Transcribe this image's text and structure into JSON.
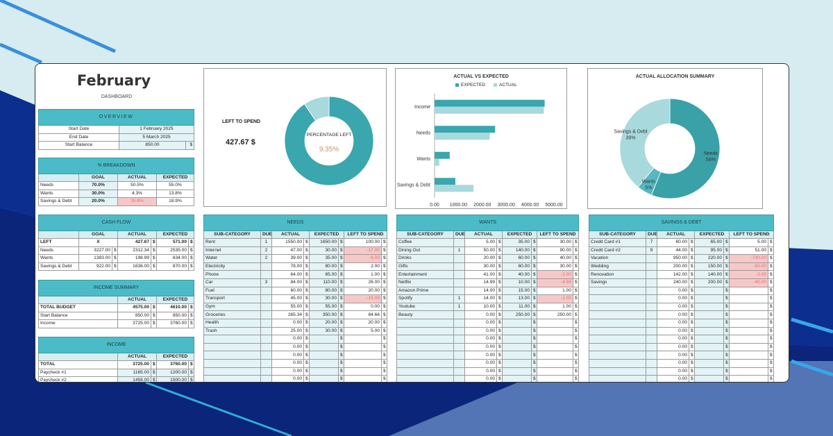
{
  "dashboard": {
    "month": "February",
    "subtitle": "DASHBOARD"
  },
  "overview": {
    "title": "OVERVIEW",
    "rows": [
      {
        "label": "Start Date",
        "value": "1 February 2025",
        "unit": ""
      },
      {
        "label": "End Date",
        "value": "5 March 2025",
        "unit": ""
      },
      {
        "label": "Start Balance",
        "value": "850.00",
        "unit": "$"
      }
    ]
  },
  "breakdown": {
    "title": "% BREAKDOWN",
    "headers": [
      "",
      "GOAL",
      "ACTUAL",
      "EXPECTED"
    ],
    "rows": [
      {
        "label": "Needs",
        "goal": "70.0%",
        "actual": "50.5%",
        "expected": "55.0%"
      },
      {
        "label": "Wants",
        "goal": "30.0%",
        "actual": "4.3%",
        "expected": "13.8%"
      },
      {
        "label": "Savings & Debt",
        "goal": "20.0%",
        "actual": "35.8%",
        "expected": "18.9%"
      }
    ]
  },
  "cashflow": {
    "title": "CASH FLOW",
    "headers": [
      "",
      "GOAL",
      "ACTUAL",
      "EXPECTED"
    ],
    "rows": [
      {
        "label": "LEFT",
        "goal": "X",
        "actual": "427.67",
        "expected": "571.00"
      },
      {
        "label": "Needs",
        "goal": "3227.00",
        "actual": "2312.34",
        "expected": "2535.00"
      },
      {
        "label": "Wants",
        "goal": "1383.00",
        "actual": "198.99",
        "expected": "634.00"
      },
      {
        "label": "Savings & Debt",
        "goal": "922.00",
        "actual": "1636.00",
        "expected": "870.00"
      }
    ]
  },
  "income_summary": {
    "title": "INCOME SUMMARY",
    "headers": [
      "",
      "ACTUAL",
      "EXPECTED"
    ],
    "rows": [
      {
        "label": "TOTAL BUDGET",
        "actual": "4575.00",
        "expected": "4610.00"
      },
      {
        "label": "Start Balance",
        "actual": "850.00",
        "expected": "850.00"
      },
      {
        "label": "Income",
        "actual": "3725.00",
        "expected": "3760.00"
      }
    ]
  },
  "income": {
    "title": "INCOME",
    "headers": [
      "",
      "ACTUAL",
      "EXPECTED"
    ],
    "rows": [
      {
        "label": "TOTAL",
        "actual": "3725.00",
        "expected": "3760.00"
      },
      {
        "label": "Paycheck #1",
        "actual": "1165.00",
        "expected": "1200.00"
      },
      {
        "label": "Paycheck #2",
        "actual": "1458.00",
        "expected": "1500.00"
      }
    ]
  },
  "left_to_spend": {
    "label": "LEFT TO SPEND",
    "amount": "427.67 $",
    "center_label": "PERCENTAGE LEFT",
    "percent": "9.35%"
  },
  "currency": "$",
  "colors": {
    "accent": "#4bbcc7",
    "primary": "#3aa3ab",
    "light": "#a8d9dc",
    "alert": "#f7c8c8"
  },
  "chart_data": [
    {
      "type": "pie",
      "variant": "donut",
      "title": "",
      "labels": [
        "",
        ""
      ],
      "values": [
        90.65,
        9.35
      ],
      "colors": [
        "#3aa6ae",
        "#a8d9dc"
      ]
    },
    {
      "type": "bar",
      "orientation": "horizontal",
      "title": "ACTUAL VS EXPECTED",
      "categories": [
        "Income",
        "Needs",
        "Wants",
        "Savings & Debt"
      ],
      "series": [
        {
          "name": "EXPECTED",
          "values": [
            4610,
            2535,
            634,
            870
          ],
          "color": "#3aa6ae"
        },
        {
          "name": "ACTUAL",
          "values": [
            4575,
            2312.34,
            198.99,
            1636
          ],
          "color": "#a8d9dc"
        }
      ],
      "xticks": [
        "0.00",
        "1000.00",
        "2000.00",
        "3000.00",
        "4000.00",
        "5000.00"
      ],
      "xlim": [
        0,
        5000
      ],
      "legend": "top"
    },
    {
      "type": "pie",
      "variant": "donut",
      "title": "ACTUAL ALLOCATION SUMMARY",
      "labels": [
        "Needs",
        "Wants",
        "Savings & Debt"
      ],
      "values": [
        56,
        5,
        39
      ],
      "value_labels": [
        "56%",
        "5%",
        "39%"
      ],
      "colors": [
        "#3aa1a9",
        "#56b8c0",
        "#a8d9dc"
      ]
    }
  ],
  "needs": {
    "title": "NEEDS",
    "headers": [
      "SUB-CATEGORY",
      "DUE",
      "ACTUAL",
      "EXPECTED",
      "LEFT TO SPEND"
    ],
    "rows": [
      {
        "name": "Rent",
        "due": "1",
        "actual": "1550.00",
        "expected": "1650.00",
        "left": "100.00",
        "neg": false
      },
      {
        "name": "Internet",
        "due": "2",
        "actual": "47.00",
        "expected": "30.00",
        "left": "-17.00",
        "neg": true
      },
      {
        "name": "Water",
        "due": "2",
        "actual": "39.00",
        "expected": "35.00",
        "left": "-4.00",
        "neg": true
      },
      {
        "name": "Electricity",
        "due": "",
        "actual": "78.00",
        "expected": "80.00",
        "left": "2.00",
        "neg": false
      },
      {
        "name": "Phone",
        "due": "",
        "actual": "64.00",
        "expected": "65.00",
        "left": "1.00",
        "neg": false
      },
      {
        "name": "Car",
        "due": "3",
        "actual": "84.00",
        "expected": "110.00",
        "left": "26.00",
        "neg": false
      },
      {
        "name": "Fuel",
        "due": "",
        "actual": "60.00",
        "expected": "80.00",
        "left": "20.00",
        "neg": false
      },
      {
        "name": "Transport",
        "due": "",
        "actual": "45.00",
        "expected": "30.00",
        "left": "-15.00",
        "neg": true
      },
      {
        "name": "Gym",
        "due": "",
        "actual": "55.00",
        "expected": "55.00",
        "left": "0.00",
        "neg": false
      },
      {
        "name": "Groceries",
        "due": "",
        "actual": "265.34",
        "expected": "350.00",
        "left": "84.66",
        "neg": false
      },
      {
        "name": "Health",
        "due": "",
        "actual": "0.00",
        "expected": "20.00",
        "left": "20.00",
        "neg": false
      },
      {
        "name": "Trash",
        "due": "",
        "actual": "25.00",
        "expected": "30.00",
        "left": "5.00",
        "neg": false
      },
      {
        "name": "",
        "due": "",
        "actual": "0.00",
        "expected": "",
        "left": "",
        "neg": false
      },
      {
        "name": "",
        "due": "",
        "actual": "0.00",
        "expected": "",
        "left": "",
        "neg": false
      },
      {
        "name": "",
        "due": "",
        "actual": "0.00",
        "expected": "",
        "left": "",
        "neg": false
      },
      {
        "name": "",
        "due": "",
        "actual": "0.00",
        "expected": "",
        "left": "",
        "neg": false
      },
      {
        "name": "",
        "due": "",
        "actual": "0.00",
        "expected": "",
        "left": "",
        "neg": false
      },
      {
        "name": "",
        "due": "",
        "actual": "0.00",
        "expected": "",
        "left": "",
        "neg": false
      }
    ]
  },
  "wants": {
    "title": "WANTS",
    "headers": [
      "SUB-CATEGORY",
      "DUE",
      "ACTUAL",
      "EXPECTED",
      "LEFT TO SPEND"
    ],
    "rows": [
      {
        "name": "Coffee",
        "due": "",
        "actual": "5.00",
        "expected": "35.00",
        "left": "30.00",
        "neg": false
      },
      {
        "name": "Dining Out",
        "due": "1",
        "actual": "50.00",
        "expected": "140.00",
        "left": "90.00",
        "neg": false
      },
      {
        "name": "Drinks",
        "due": "",
        "actual": "20.00",
        "expected": "60.00",
        "left": "40.00",
        "neg": false
      },
      {
        "name": "Gifts",
        "due": "",
        "actual": "30.00",
        "expected": "60.00",
        "left": "30.00",
        "neg": false
      },
      {
        "name": "Entertainment",
        "due": "",
        "actual": "41.00",
        "expected": "40.00",
        "left": "-1.00",
        "neg": true
      },
      {
        "name": "Netflix",
        "due": "",
        "actual": "14.99",
        "expected": "10.00",
        "left": "-4.99",
        "neg": true
      },
      {
        "name": "Amazon Prime",
        "due": "",
        "actual": "14.00",
        "expected": "15.00",
        "left": "1.00",
        "neg": false
      },
      {
        "name": "Spotify",
        "due": "1",
        "actual": "14.00",
        "expected": "13.00",
        "left": "-1.00",
        "neg": true
      },
      {
        "name": "Youtube",
        "due": "1",
        "actual": "10.00",
        "expected": "11.00",
        "left": "1.00",
        "neg": false
      },
      {
        "name": "Beauty",
        "due": "",
        "actual": "0.00",
        "expected": "250.00",
        "left": "250.00",
        "neg": false
      },
      {
        "name": "",
        "due": "",
        "actual": "0.00",
        "expected": "",
        "left": "",
        "neg": false
      },
      {
        "name": "",
        "due": "",
        "actual": "0.00",
        "expected": "",
        "left": "",
        "neg": false
      },
      {
        "name": "",
        "due": "",
        "actual": "0.00",
        "expected": "",
        "left": "",
        "neg": false
      },
      {
        "name": "",
        "due": "",
        "actual": "0.00",
        "expected": "",
        "left": "",
        "neg": false
      },
      {
        "name": "",
        "due": "",
        "actual": "0.00",
        "expected": "",
        "left": "",
        "neg": false
      },
      {
        "name": "",
        "due": "",
        "actual": "0.00",
        "expected": "",
        "left": "",
        "neg": false
      },
      {
        "name": "",
        "due": "",
        "actual": "0.00",
        "expected": "",
        "left": "",
        "neg": false
      },
      {
        "name": "",
        "due": "",
        "actual": "0.00",
        "expected": "",
        "left": "",
        "neg": false
      }
    ]
  },
  "savings": {
    "title": "SAVINGS & DEBT",
    "headers": [
      "SUB-CATEGORY",
      "DUE",
      "ACTUAL",
      "EXPECTED",
      "LEFT TO SPEND"
    ],
    "rows": [
      {
        "name": "Credit Card #1",
        "due": "7",
        "actual": "60.00",
        "expected": "65.00",
        "left": "5.00",
        "neg": false
      },
      {
        "name": "Credit Card #2",
        "due": "9",
        "actual": "44.00",
        "expected": "95.00",
        "left": "51.00",
        "neg": false
      },
      {
        "name": "Vacation",
        "due": "",
        "actual": "950.00",
        "expected": "220.00",
        "left": "-730.00",
        "neg": true
      },
      {
        "name": "Wedding",
        "due": "",
        "actual": "200.00",
        "expected": "150.00",
        "left": "-50.00",
        "neg": true
      },
      {
        "name": "Renovation",
        "due": "",
        "actual": "142.00",
        "expected": "140.00",
        "left": "-2.00",
        "neg": true
      },
      {
        "name": "Savings",
        "due": "",
        "actual": "240.00",
        "expected": "200.00",
        "left": "-40.00",
        "neg": true
      },
      {
        "name": "",
        "due": "",
        "actual": "0.00",
        "expected": "",
        "left": "",
        "neg": false
      },
      {
        "name": "",
        "due": "",
        "actual": "0.00",
        "expected": "",
        "left": "",
        "neg": false
      },
      {
        "name": "",
        "due": "",
        "actual": "0.00",
        "expected": "",
        "left": "",
        "neg": false
      },
      {
        "name": "",
        "due": "",
        "actual": "0.00",
        "expected": "",
        "left": "",
        "neg": false
      },
      {
        "name": "",
        "due": "",
        "actual": "0.00",
        "expected": "",
        "left": "",
        "neg": false
      },
      {
        "name": "",
        "due": "",
        "actual": "0.00",
        "expected": "",
        "left": "",
        "neg": false
      },
      {
        "name": "",
        "due": "",
        "actual": "0.00",
        "expected": "",
        "left": "",
        "neg": false
      },
      {
        "name": "",
        "due": "",
        "actual": "0.00",
        "expected": "",
        "left": "",
        "neg": false
      },
      {
        "name": "",
        "due": "",
        "actual": "0.00",
        "expected": "",
        "left": "",
        "neg": false
      },
      {
        "name": "",
        "due": "",
        "actual": "0.00",
        "expected": "",
        "left": "",
        "neg": false
      },
      {
        "name": "",
        "due": "",
        "actual": "0.00",
        "expected": "",
        "left": "",
        "neg": false
      },
      {
        "name": "",
        "due": "",
        "actual": "0.00",
        "expected": "",
        "left": "",
        "neg": false
      }
    ]
  }
}
